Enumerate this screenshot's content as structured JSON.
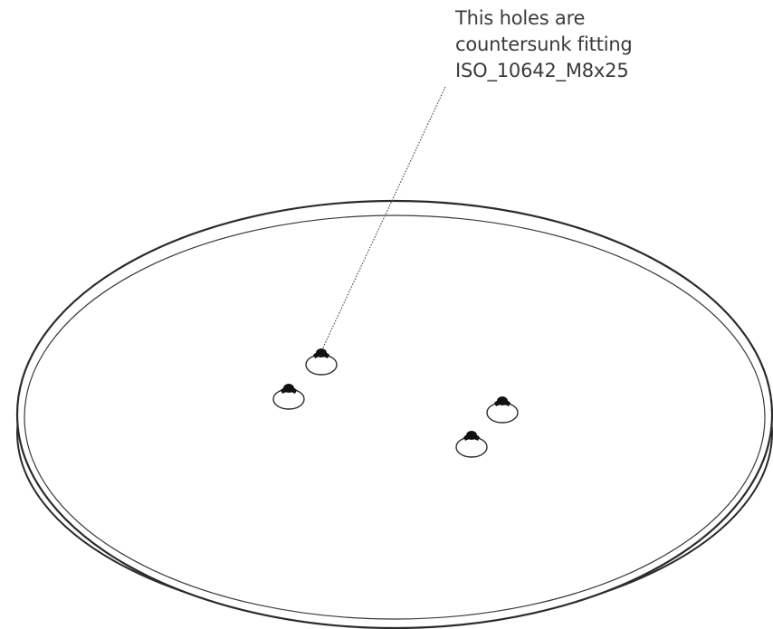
{
  "annotation": {
    "lines": [
      "This holes are",
      "countersunk fitting",
      "ISO_10642_M8x25"
    ]
  },
  "colors": {
    "line": "#2b2b2b",
    "leader": "#555555",
    "hole_fill": "#111111",
    "text": "#3a3a3a",
    "background": "#ffffff"
  }
}
